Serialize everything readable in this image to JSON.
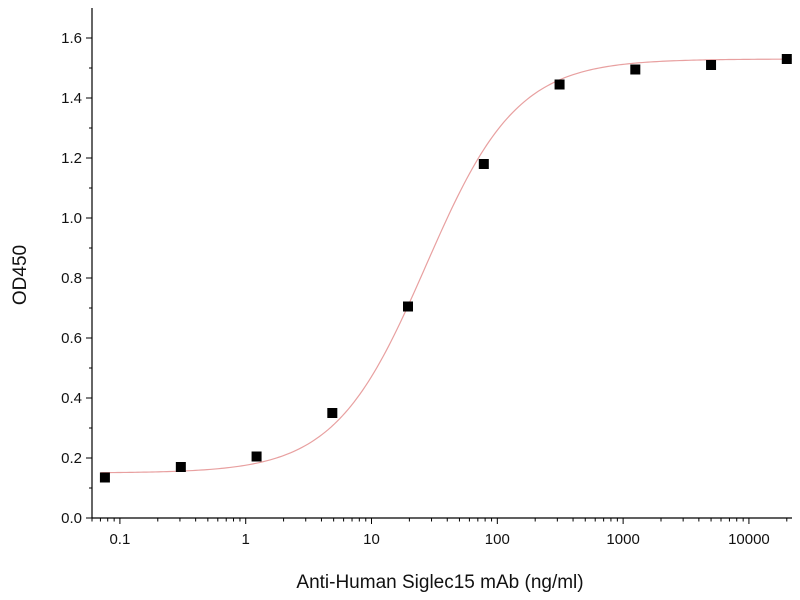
{
  "chart_data": {
    "type": "scatter",
    "title": "",
    "xlabel": "Anti-Human Siglec15 mAb (ng/ml)",
    "ylabel": "OD450",
    "x_scale": "log",
    "xlim": [
      0.06,
      22000
    ],
    "ylim": [
      0,
      1.7
    ],
    "x_ticks": [
      0.1,
      1,
      10,
      100,
      1000,
      10000
    ],
    "x_tick_labels": [
      "0.1",
      "1",
      "10",
      "100",
      "1000",
      "10000"
    ],
    "y_ticks": [
      0,
      0.2,
      0.4,
      0.6,
      0.8,
      1.0,
      1.2,
      1.4,
      1.6
    ],
    "y_tick_labels": [
      "0.0",
      "0.2",
      "0.4",
      "0.6",
      "0.8",
      "1.0",
      "1.2",
      "1.4",
      "1.6"
    ],
    "grid": false,
    "series": [
      {
        "marker": "square",
        "color": "#000000",
        "x": [
          0.076,
          0.305,
          1.22,
          4.88,
          19.5,
          78.1,
          312.5,
          1250,
          5000,
          20000
        ],
        "y": [
          0.135,
          0.17,
          0.205,
          0.35,
          0.705,
          1.18,
          1.445,
          1.495,
          1.51,
          1.53
        ]
      }
    ],
    "fit_curve": {
      "type": "4PL",
      "color": "#e8a0a0",
      "bottom": 0.15,
      "top": 1.53,
      "ec50": 27,
      "hill": 1.2
    }
  }
}
